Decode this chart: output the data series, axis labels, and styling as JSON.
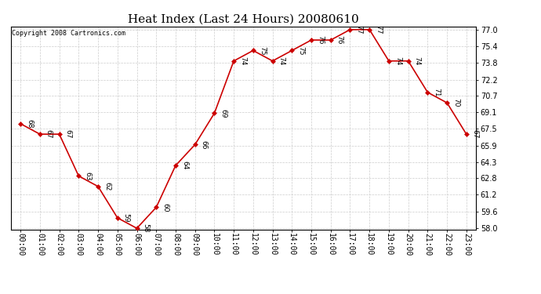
{
  "title": "Heat Index (Last 24 Hours) 20080610",
  "hours": [
    "00:00",
    "01:00",
    "02:00",
    "03:00",
    "04:00",
    "05:00",
    "06:00",
    "07:00",
    "08:00",
    "09:00",
    "10:00",
    "11:00",
    "12:00",
    "13:00",
    "14:00",
    "15:00",
    "16:00",
    "17:00",
    "18:00",
    "19:00",
    "20:00",
    "21:00",
    "22:00",
    "23:00"
  ],
  "values": [
    68,
    67,
    67,
    63,
    62,
    59,
    58,
    60,
    64,
    66,
    69,
    74,
    75,
    74,
    75,
    76,
    76,
    77,
    77,
    74,
    74,
    71,
    70,
    67
  ],
  "ylim_min": 58.0,
  "ylim_max": 77.0,
  "yticks": [
    58.0,
    59.6,
    61.2,
    62.8,
    64.3,
    65.9,
    67.5,
    69.1,
    70.7,
    72.2,
    73.8,
    75.4,
    77.0
  ],
  "line_color": "#cc0000",
  "marker_color": "#cc0000",
  "bg_color": "#ffffff",
  "plot_bg_color": "#ffffff",
  "grid_color": "#cccccc",
  "copyright_text": "Copyright 2008 Cartronics.com",
  "title_fontsize": 11,
  "label_fontsize": 6.5,
  "tick_fontsize": 7,
  "copyright_fontsize": 6
}
